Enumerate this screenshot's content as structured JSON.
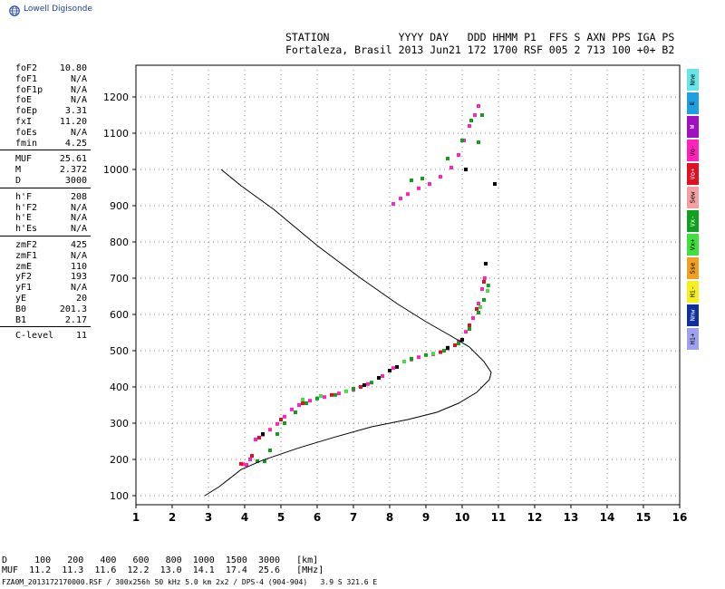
{
  "brand": {
    "name": "Lowell Digisonde",
    "color": "#1a3fa0",
    "icon": "globe-icon"
  },
  "header": {
    "line1": "STATION           YYYY DAY   DDD HHMM P1  FFS S AXN PPS IGA PS",
    "line2": "Fortaleza, Brasil 2013 Jun21 172 1700 RSF 005 2 713 100 +0+ B2"
  },
  "params": [
    {
      "k": "foF2",
      "v": "10.80"
    },
    {
      "k": "foF1",
      "v": "N/A"
    },
    {
      "k": "foF1p",
      "v": "N/A"
    },
    {
      "k": "foE",
      "v": "N/A"
    },
    {
      "k": "foEp",
      "v": "3.31"
    },
    {
      "k": "fxI",
      "v": "11.20"
    },
    {
      "k": "foEs",
      "v": "N/A"
    },
    {
      "k": "fmin",
      "v": "4.25"
    },
    {
      "sep": true
    },
    {
      "k": "MUF",
      "v": "25.61"
    },
    {
      "k": "M",
      "v": "2.372"
    },
    {
      "k": "D",
      "v": "3000"
    },
    {
      "sep": true
    },
    {
      "k": "h'F",
      "v": "208"
    },
    {
      "k": "h'F2",
      "v": "N/A"
    },
    {
      "k": "h'E",
      "v": "N/A"
    },
    {
      "k": "h'Es",
      "v": "N/A"
    },
    {
      "sep": true
    },
    {
      "k": "zmF2",
      "v": "425"
    },
    {
      "k": "zmF1",
      "v": "N/A"
    },
    {
      "k": "zmE",
      "v": "110"
    },
    {
      "k": "yF2",
      "v": "193"
    },
    {
      "k": "yF1",
      "v": "N/A"
    },
    {
      "k": "yE",
      "v": "20"
    },
    {
      "k": "B0",
      "v": "201.3"
    },
    {
      "k": "B1",
      "v": "2.17"
    },
    {
      "sep": true
    },
    {
      "k": "C-level",
      "v": "11"
    }
  ],
  "legend": [
    {
      "label": "Nne",
      "color": "#66e6e6"
    },
    {
      "label": "E",
      "color": "#1ea0e0"
    },
    {
      "label": "W",
      "color": "#a010c0"
    },
    {
      "label": "Vo-",
      "color": "#ff22bb"
    },
    {
      "label": "Vo+",
      "color": "#e01020"
    },
    {
      "label": "Sew",
      "color": "#f4a0a0"
    },
    {
      "label": "Vx-",
      "color": "#10a020"
    },
    {
      "label": "Vx+",
      "color": "#40e040"
    },
    {
      "label": "Sse",
      "color": "#f0a020"
    },
    {
      "label": "Hi-",
      "color": "#f4f020"
    },
    {
      "label": "Nnw",
      "color": "#1030a0"
    },
    {
      "label": "Hi+",
      "color": "#a0a0f0"
    }
  ],
  "muf_table": {
    "line1": "D     100   200   400   600   800  1000  1500  3000   [km]",
    "line2": "MUF  11.2  11.3  11.6  12.2  13.0  14.1  17.4  25.6   [MHz]"
  },
  "footer": "FZA0M_2013172170000.RSF / 300x256h 50 kHz 5.0 km 2x2 / DPS-4 (904-904)   3.9 S 321.6 E",
  "chart_data": {
    "type": "scatter",
    "xlim": [
      1,
      16
    ],
    "ylim": [
      100,
      1250
    ],
    "xticks": [
      1,
      2,
      3,
      4,
      5,
      6,
      7,
      8,
      9,
      10,
      11,
      12,
      13,
      14,
      15,
      16
    ],
    "yticks": [
      100,
      200,
      300,
      400,
      500,
      600,
      700,
      800,
      900,
      1000,
      1100,
      1200
    ],
    "grid": true,
    "series": [
      {
        "color": "#ff22bb",
        "points": [
          [
            3.95,
            187
          ],
          [
            4.05,
            185
          ],
          [
            4.15,
            200
          ],
          [
            4.3,
            255
          ],
          [
            4.5,
            268
          ],
          [
            4.7,
            282
          ],
          [
            4.9,
            298
          ],
          [
            5.1,
            318
          ],
          [
            5.3,
            338
          ],
          [
            5.5,
            350
          ],
          [
            5.8,
            362
          ],
          [
            6.2,
            372
          ],
          [
            6.6,
            382
          ],
          [
            7.0,
            392
          ],
          [
            7.4,
            408
          ],
          [
            7.8,
            430
          ],
          [
            8.1,
            452
          ],
          [
            8.4,
            470
          ],
          [
            8.8,
            482
          ],
          [
            9.2,
            490
          ],
          [
            9.6,
            506
          ],
          [
            9.9,
            526
          ],
          [
            10.1,
            552
          ],
          [
            10.3,
            590
          ],
          [
            10.45,
            630
          ],
          [
            10.55,
            670
          ],
          [
            10.62,
            700
          ],
          [
            8.1,
            905
          ],
          [
            8.3,
            920
          ],
          [
            8.5,
            932
          ],
          [
            8.8,
            948
          ],
          [
            9.1,
            960
          ],
          [
            9.4,
            980
          ],
          [
            9.7,
            1005
          ],
          [
            9.9,
            1040
          ],
          [
            10.05,
            1080
          ],
          [
            10.2,
            1120
          ],
          [
            10.35,
            1150
          ],
          [
            10.45,
            1175
          ]
        ]
      },
      {
        "color": "#e01020",
        "points": [
          [
            3.9,
            188
          ],
          [
            4.2,
            210
          ],
          [
            4.4,
            260
          ],
          [
            5.0,
            310
          ],
          [
            5.6,
            355
          ],
          [
            6.4,
            378
          ],
          [
            7.2,
            400
          ],
          [
            8.0,
            445
          ],
          [
            8.6,
            476
          ],
          [
            9.4,
            496
          ],
          [
            9.8,
            515
          ],
          [
            10.2,
            570
          ],
          [
            10.4,
            615
          ],
          [
            10.6,
            690
          ]
        ]
      },
      {
        "color": "#10a020",
        "points": [
          [
            4.35,
            195
          ],
          [
            4.55,
            195
          ],
          [
            4.7,
            225
          ],
          [
            4.9,
            270
          ],
          [
            5.1,
            300
          ],
          [
            5.4,
            330
          ],
          [
            5.7,
            355
          ],
          [
            6.0,
            368
          ],
          [
            6.5,
            378
          ],
          [
            7.0,
            395
          ],
          [
            7.5,
            412
          ],
          [
            8.2,
            455
          ],
          [
            8.6,
            478
          ],
          [
            9.0,
            488
          ],
          [
            9.5,
            500
          ],
          [
            9.9,
            520
          ],
          [
            10.2,
            560
          ],
          [
            10.45,
            605
          ],
          [
            10.6,
            640
          ],
          [
            10.72,
            680
          ],
          [
            8.6,
            970
          ],
          [
            8.9,
            975
          ],
          [
            9.6,
            1030
          ],
          [
            10.0,
            1080
          ],
          [
            10.25,
            1135
          ],
          [
            10.55,
            1150
          ],
          [
            10.45,
            1075
          ]
        ]
      },
      {
        "color": "#40e040",
        "points": [
          [
            5.6,
            365
          ],
          [
            6.1,
            375
          ],
          [
            6.8,
            388
          ],
          [
            8.4,
            470
          ],
          [
            9.2,
            492
          ],
          [
            10.5,
            620
          ],
          [
            10.7,
            665
          ]
        ]
      },
      {
        "color": "#000000",
        "points": [
          [
            7.3,
            405
          ],
          [
            7.7,
            425
          ],
          [
            8.0,
            445
          ],
          [
            8.2,
            455
          ],
          [
            9.6,
            508
          ],
          [
            10.0,
            530
          ],
          [
            10.65,
            740
          ],
          [
            10.9,
            960
          ],
          [
            10.1,
            1000
          ],
          [
            4.5,
            270
          ]
        ]
      }
    ],
    "profile": {
      "color": "#000000",
      "points": [
        [
          2.9,
          100
        ],
        [
          3.3,
          125
        ],
        [
          3.9,
          172
        ],
        [
          4.5,
          198
        ],
        [
          5.5,
          232
        ],
        [
          6.5,
          262
        ],
        [
          7.5,
          290
        ],
        [
          8.5,
          310
        ],
        [
          9.3,
          330
        ],
        [
          9.9,
          355
        ],
        [
          10.4,
          385
        ],
        [
          10.75,
          420
        ],
        [
          10.8,
          440
        ],
        [
          10.6,
          470
        ],
        [
          10.2,
          510
        ],
        [
          9.7,
          540
        ],
        [
          9.0,
          580
        ],
        [
          8.2,
          630
        ],
        [
          7.2,
          700
        ],
        [
          6.0,
          790
        ],
        [
          4.8,
          890
        ],
        [
          3.9,
          955
        ],
        [
          3.35,
          1000
        ]
      ]
    }
  }
}
